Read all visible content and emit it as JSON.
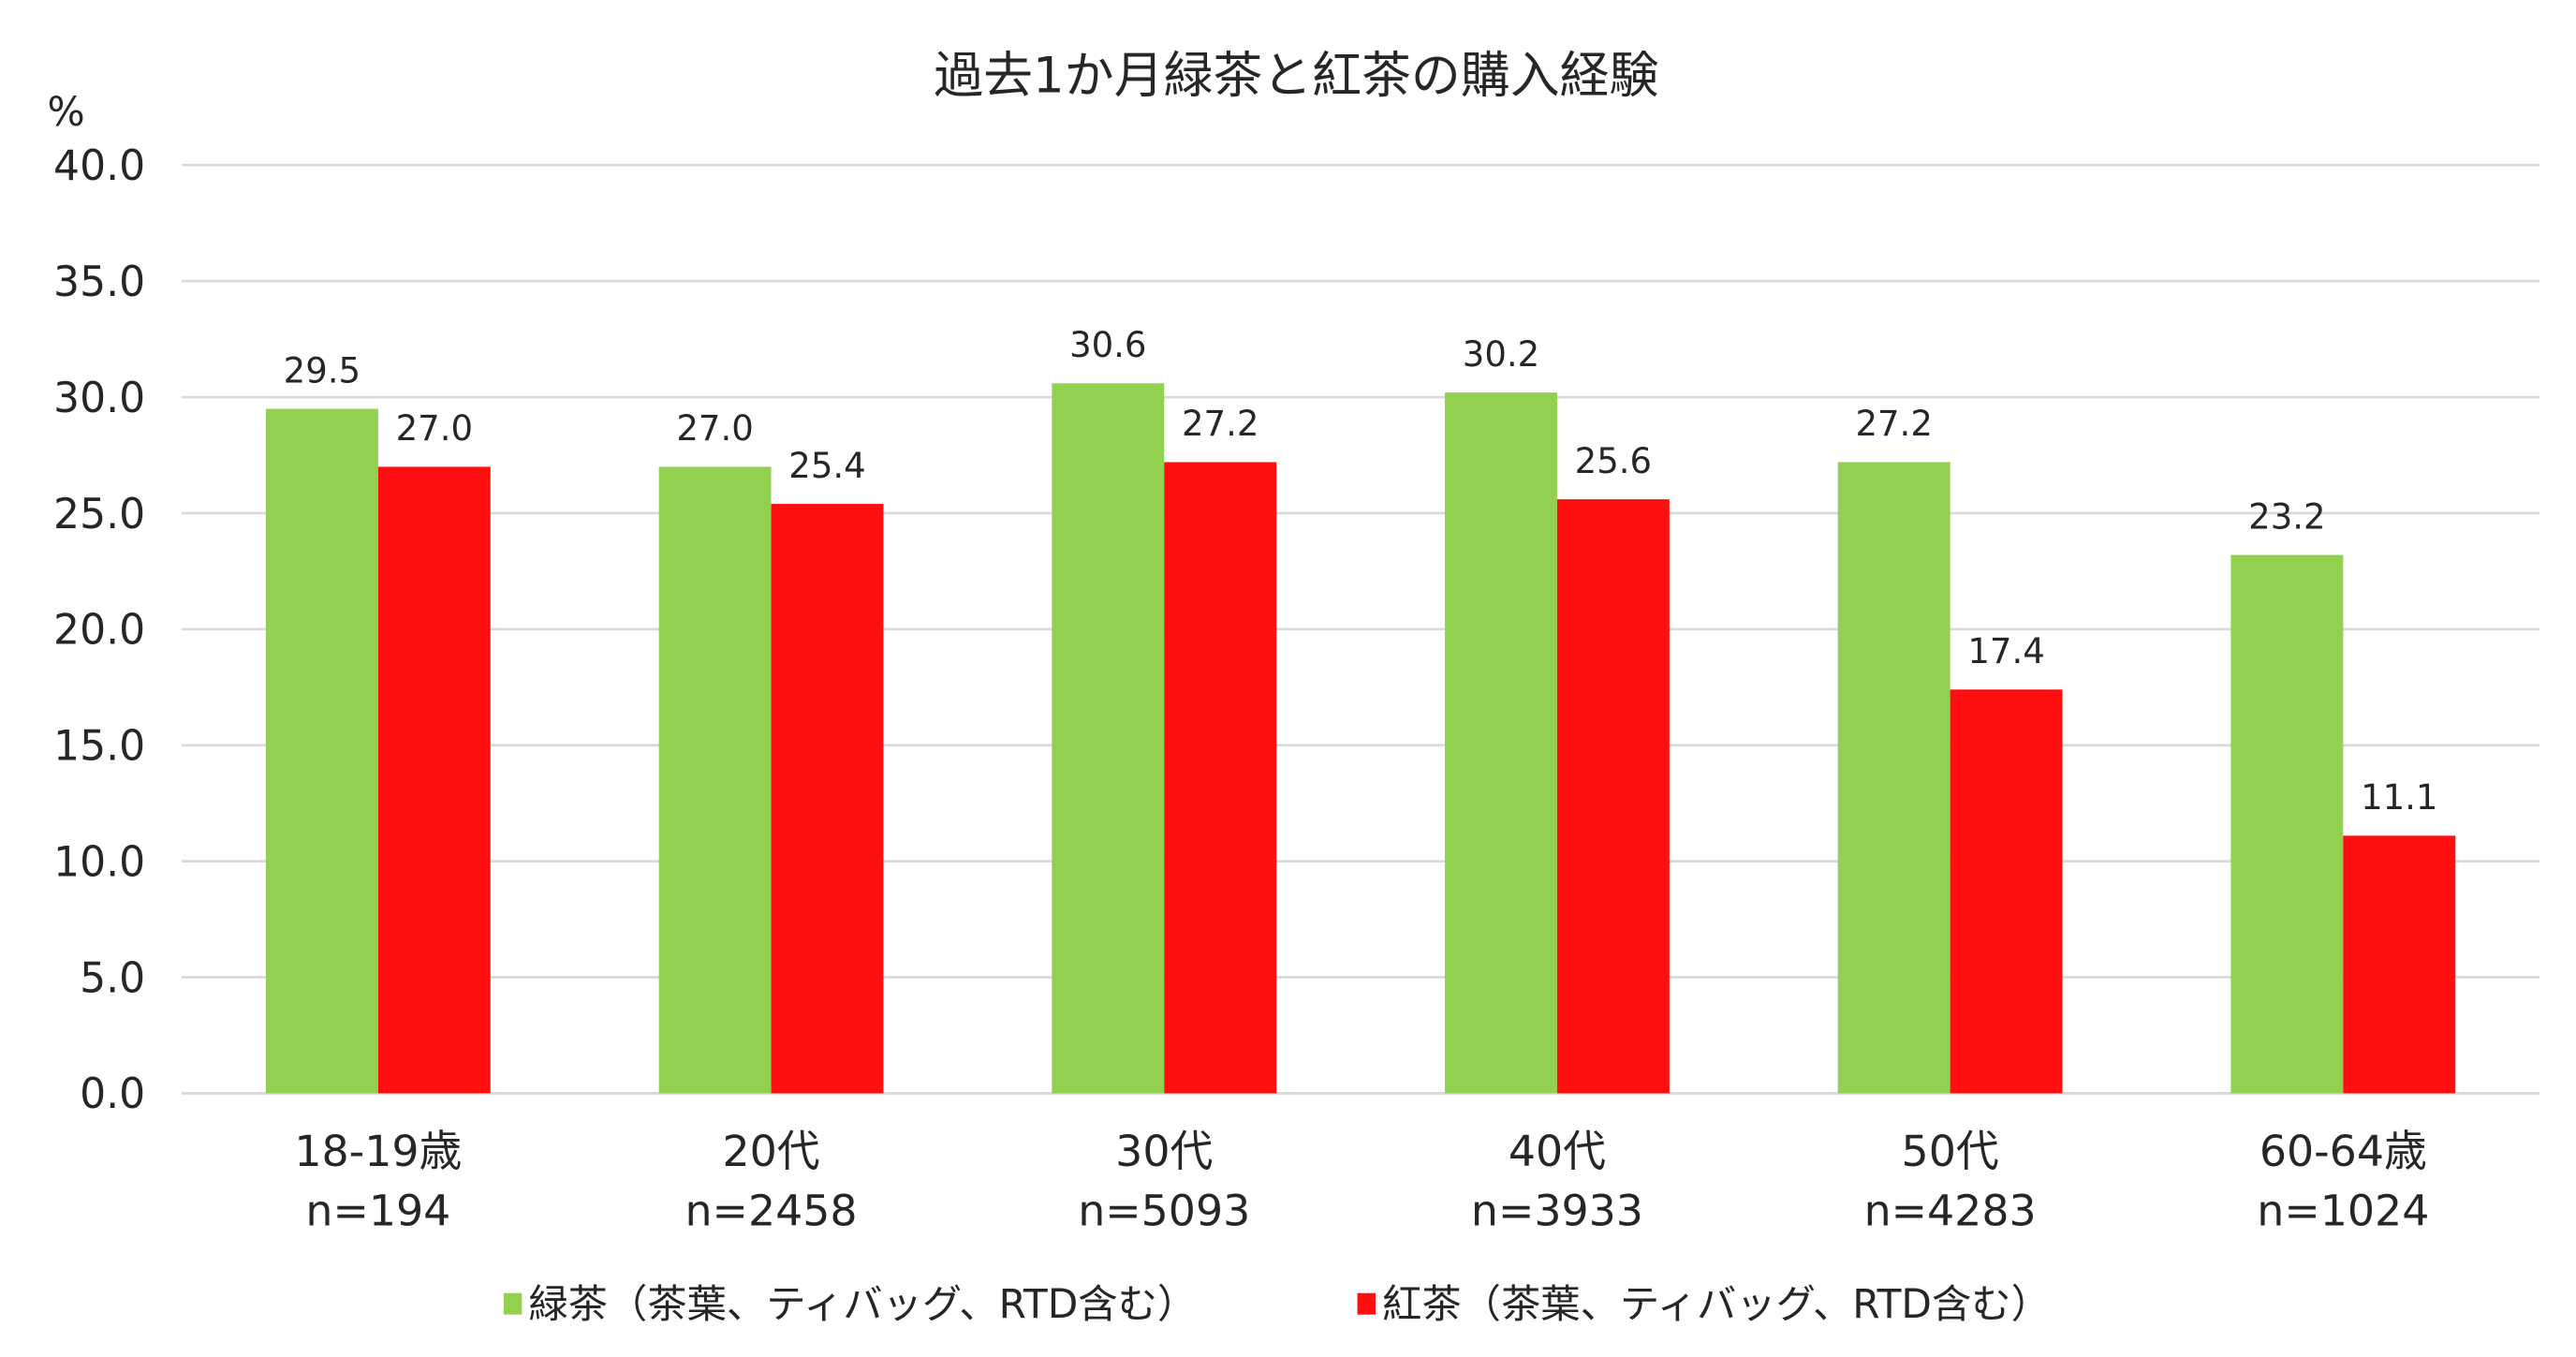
{
  "chart_data": {
    "type": "bar",
    "title": "過去1か月緑茶と紅茶の購入経験",
    "ylabel": "%",
    "ylim": [
      0,
      40
    ],
    "ytick_step": 5,
    "yticks": [
      "0.0",
      "5.0",
      "10.0",
      "15.0",
      "20.0",
      "25.0",
      "30.0",
      "35.0",
      "40.0"
    ],
    "grid": true,
    "legend_position": "bottom",
    "categories": [
      [
        "18-19歳",
        "n=194"
      ],
      [
        "20代",
        "n=2458"
      ],
      [
        "30代",
        "n=5093"
      ],
      [
        "40代",
        "n=3933"
      ],
      [
        "50代",
        "n=4283"
      ],
      [
        "60-64歳",
        "n=1024"
      ]
    ],
    "series": [
      {
        "name": "緑茶（茶葉、ティバッグ、RTD含む）",
        "color": "#92d050",
        "values": [
          29.5,
          27.0,
          30.6,
          30.2,
          27.2,
          23.2
        ]
      },
      {
        "name": "紅茶（茶葉、ティバッグ、RTD含む）",
        "color": "#ff1010",
        "values": [
          27.0,
          25.4,
          27.2,
          25.6,
          17.4,
          11.1
        ]
      }
    ],
    "gridline_color": "#d9d9d9"
  }
}
